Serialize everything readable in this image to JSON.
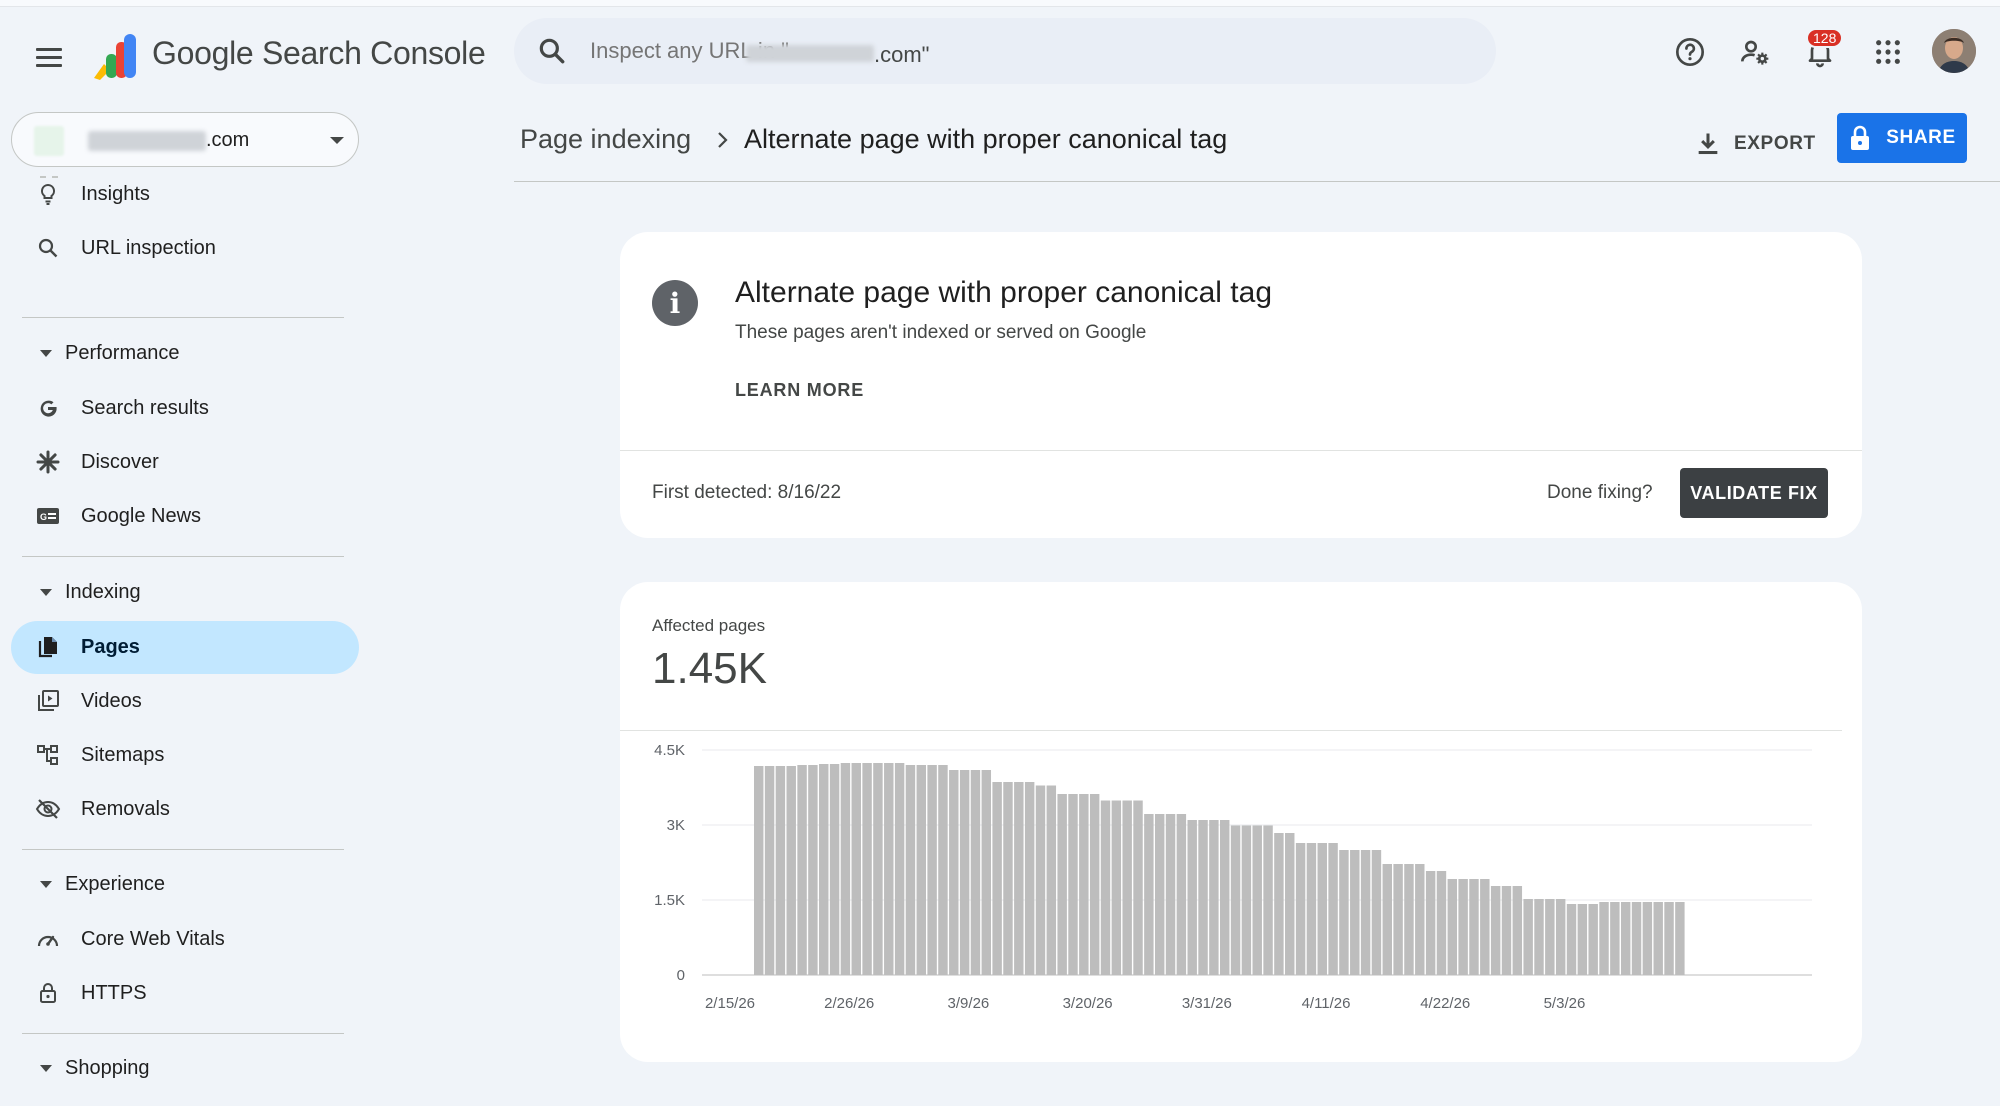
{
  "header": {
    "brand": "Google Search Console",
    "search_placeholder": "Inspect any URL in \"",
    "search_tail": ".com\"",
    "notification_count": "128"
  },
  "property": {
    "domain": ".com"
  },
  "sidebar": {
    "items_top": [
      {
        "label": "Insights",
        "icon": "lightbulb-icon"
      },
      {
        "label": "URL inspection",
        "icon": "search-icon"
      }
    ],
    "performance": {
      "label": "Performance",
      "items": [
        {
          "label": "Search results",
          "icon": "google-g-icon"
        },
        {
          "label": "Discover",
          "icon": "asterisk-icon"
        },
        {
          "label": "Google News",
          "icon": "news-icon"
        }
      ]
    },
    "indexing": {
      "label": "Indexing",
      "items": [
        {
          "label": "Pages",
          "icon": "pages-icon"
        },
        {
          "label": "Videos",
          "icon": "video-icon"
        },
        {
          "label": "Sitemaps",
          "icon": "sitemap-icon"
        },
        {
          "label": "Removals",
          "icon": "visibility-off-icon"
        }
      ]
    },
    "experience": {
      "label": "Experience",
      "items": [
        {
          "label": "Core Web Vitals",
          "icon": "speed-icon"
        },
        {
          "label": "HTTPS",
          "icon": "lock-icon"
        }
      ]
    },
    "shopping": {
      "label": "Shopping"
    }
  },
  "breadcrumb": {
    "parent": "Page indexing",
    "current": "Alternate page with proper canonical tag"
  },
  "actions": {
    "export": "EXPORT",
    "share": "SHARE"
  },
  "issue": {
    "title": "Alternate page with proper canonical tag",
    "subtitle": "These pages aren't indexed or served on Google",
    "learn_more": "LEARN MORE",
    "first_detected": "First detected: 8/16/22",
    "done_fixing": "Done fixing?",
    "validate": "VALIDATE FIX"
  },
  "affected": {
    "label": "Affected pages",
    "value": "1.45K"
  },
  "chart_data": {
    "type": "bar",
    "ylabel": "",
    "xlabel": "",
    "ylim": [
      0,
      4500
    ],
    "y_ticks": [
      {
        "value": 0,
        "label": "0"
      },
      {
        "value": 1500,
        "label": "1.5K"
      },
      {
        "value": 3000,
        "label": "3K"
      },
      {
        "value": 4500,
        "label": "4.5K"
      }
    ],
    "x_tick_labels": [
      {
        "index": 0,
        "label": "2/15/26"
      },
      {
        "index": 11,
        "label": "2/26/26"
      },
      {
        "index": 22,
        "label": "3/9/26"
      },
      {
        "index": 33,
        "label": "3/20/26"
      },
      {
        "index": 44,
        "label": "3/31/26"
      },
      {
        "index": 55,
        "label": "4/11/26"
      },
      {
        "index": 66,
        "label": "4/22/26"
      },
      {
        "index": 77,
        "label": "5/3/26"
      }
    ],
    "values": [
      4180,
      4180,
      4180,
      4180,
      4200,
      4200,
      4220,
      4220,
      4240,
      4240,
      4240,
      4240,
      4240,
      4240,
      4200,
      4200,
      4200,
      4200,
      4100,
      4100,
      4100,
      4100,
      3860,
      3860,
      3860,
      3860,
      3790,
      3790,
      3620,
      3620,
      3620,
      3620,
      3490,
      3490,
      3490,
      3490,
      3220,
      3220,
      3220,
      3220,
      3100,
      3100,
      3100,
      3100,
      2990,
      2990,
      2990,
      2990,
      2840,
      2840,
      2640,
      2640,
      2640,
      2640,
      2500,
      2500,
      2500,
      2500,
      2220,
      2220,
      2220,
      2220,
      2080,
      2080,
      1920,
      1920,
      1920,
      1920,
      1780,
      1780,
      1780,
      1520,
      1520,
      1520,
      1520,
      1420,
      1420,
      1420,
      1460,
      1460,
      1460,
      1460,
      1460,
      1460,
      1460,
      1460
    ]
  }
}
